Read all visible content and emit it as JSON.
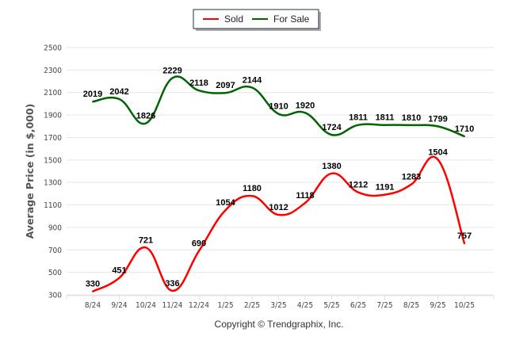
{
  "chart_data": {
    "type": "line",
    "title": "",
    "xlabel": "",
    "ylabel": "Average Price (in $,000)",
    "ylim": [
      300,
      2500
    ],
    "yticks": [
      300,
      500,
      700,
      900,
      1100,
      1300,
      1500,
      1700,
      1900,
      2100,
      2300,
      2500
    ],
    "grid": true,
    "legend_position": "top-center",
    "categories": [
      "8/24",
      "9/24",
      "10/24",
      "11/24",
      "12/24",
      "1/25",
      "2/25",
      "3/25",
      "4/25",
      "5/25",
      "6/25",
      "7/25",
      "8/25",
      "9/25",
      "10/25"
    ],
    "series": [
      {
        "name": "Sold",
        "color": "#ff0000",
        "values": [
          330,
          451,
          721,
          336,
          690,
          1054,
          1180,
          1012,
          1118,
          1380,
          1212,
          1191,
          1283,
          1504,
          757
        ]
      },
      {
        "name": "For Sale",
        "color": "#006400",
        "values": [
          2019,
          2042,
          1826,
          2229,
          2118,
          2097,
          2144,
          1910,
          1920,
          1724,
          1811,
          1811,
          1810,
          1799,
          1710
        ]
      }
    ],
    "footer": "Copyright © Trendgraphix, Inc."
  }
}
